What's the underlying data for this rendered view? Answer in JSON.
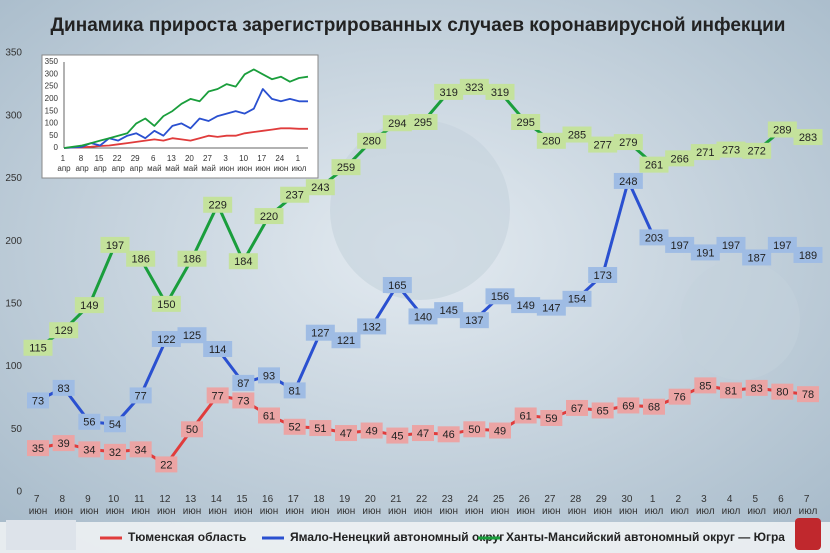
{
  "chart_data": [
    {
      "type": "line",
      "title": "Динамика прироста зарегистрированных случаев коронавирусной инфекции",
      "categories": [
        "7 июн",
        "8 июн",
        "9 июн",
        "10 июн",
        "11 июн",
        "12 июн",
        "13 июн",
        "14 июн",
        "15 июн",
        "16 июн",
        "17 июн",
        "18 июн",
        "19 июн",
        "20 июн",
        "21 июн",
        "22 июн",
        "23 июн",
        "24 июн",
        "25 июн",
        "26 июн",
        "27 июн",
        "28 июн",
        "29 июн",
        "30 июн",
        "1 июл",
        "2 июл",
        "3 июл",
        "4 июл",
        "5 июл",
        "6 июл",
        "7 июл"
      ],
      "ylim": [
        0,
        350
      ],
      "yticks": [
        0,
        50,
        100,
        150,
        200,
        250,
        300,
        350
      ],
      "grid": false,
      "legend": "bottom",
      "series": [
        {
          "name": "Тюменская область",
          "color": "#e03c3c",
          "label_color": "#eba4a4",
          "values": [
            35,
            39,
            34,
            32,
            34,
            22,
            50,
            77,
            73,
            61,
            52,
            51,
            47,
            49,
            45,
            47,
            46,
            50,
            49,
            61,
            59,
            67,
            65,
            69,
            68,
            76,
            85,
            81,
            83,
            80,
            78
          ]
        },
        {
          "name": "Ямало-Ненецкий автономный округ",
          "color": "#2a50d0",
          "label_color": "#9fbce4",
          "values": [
            73,
            83,
            56,
            54,
            77,
            122,
            125,
            114,
            87,
            93,
            81,
            127,
            121,
            132,
            165,
            140,
            145,
            137,
            156,
            149,
            147,
            154,
            173,
            248,
            203,
            197,
            191,
            197,
            187,
            197,
            189
          ]
        },
        {
          "name": "Ханты-Мансийский автономный округ — Югра",
          "color": "#1a9e3c",
          "label_color": "#c4e29c",
          "values": [
            115,
            129,
            149,
            197,
            186,
            150,
            186,
            229,
            184,
            220,
            237,
            243,
            259,
            280,
            294,
            295,
            319,
            323,
            319,
            295,
            280,
            285,
            277,
            279,
            261,
            266,
            271,
            273,
            272,
            289,
            283
          ]
        }
      ]
    },
    {
      "type": "line",
      "categories": [
        "1 апр",
        null,
        "8 апр",
        null,
        "15 апр",
        null,
        "22 апр",
        null,
        "29 апр",
        null,
        "6 май",
        null,
        "13 май",
        null,
        "20 май",
        null,
        "27 май",
        null,
        "3 июн",
        null,
        "10 июн",
        null,
        "17 июн",
        null,
        "24 июн",
        null,
        "1 июл",
        null
      ],
      "ylim": [
        0,
        350
      ],
      "yticks": [
        0,
        50,
        100,
        150,
        200,
        250,
        300,
        350
      ],
      "grid": false,
      "series": [
        {
          "color": "#e03c3c",
          "values": [
            0,
            2,
            3,
            5,
            8,
            10,
            15,
            20,
            25,
            30,
            35,
            30,
            40,
            35,
            30,
            40,
            50,
            45,
            50,
            50,
            60,
            65,
            70,
            75,
            80,
            80,
            78,
            78
          ]
        },
        {
          "color": "#2a50d0",
          "values": [
            0,
            2,
            5,
            20,
            10,
            40,
            30,
            50,
            60,
            40,
            70,
            50,
            90,
            100,
            80,
            120,
            110,
            130,
            140,
            150,
            140,
            160,
            240,
            200,
            190,
            200,
            190,
            190
          ]
        },
        {
          "color": "#1a9e3c",
          "values": [
            0,
            5,
            10,
            20,
            30,
            40,
            50,
            60,
            100,
            120,
            90,
            130,
            150,
            180,
            200,
            190,
            230,
            240,
            260,
            250,
            300,
            320,
            300,
            280,
            290,
            270,
            285,
            290
          ]
        }
      ]
    }
  ]
}
